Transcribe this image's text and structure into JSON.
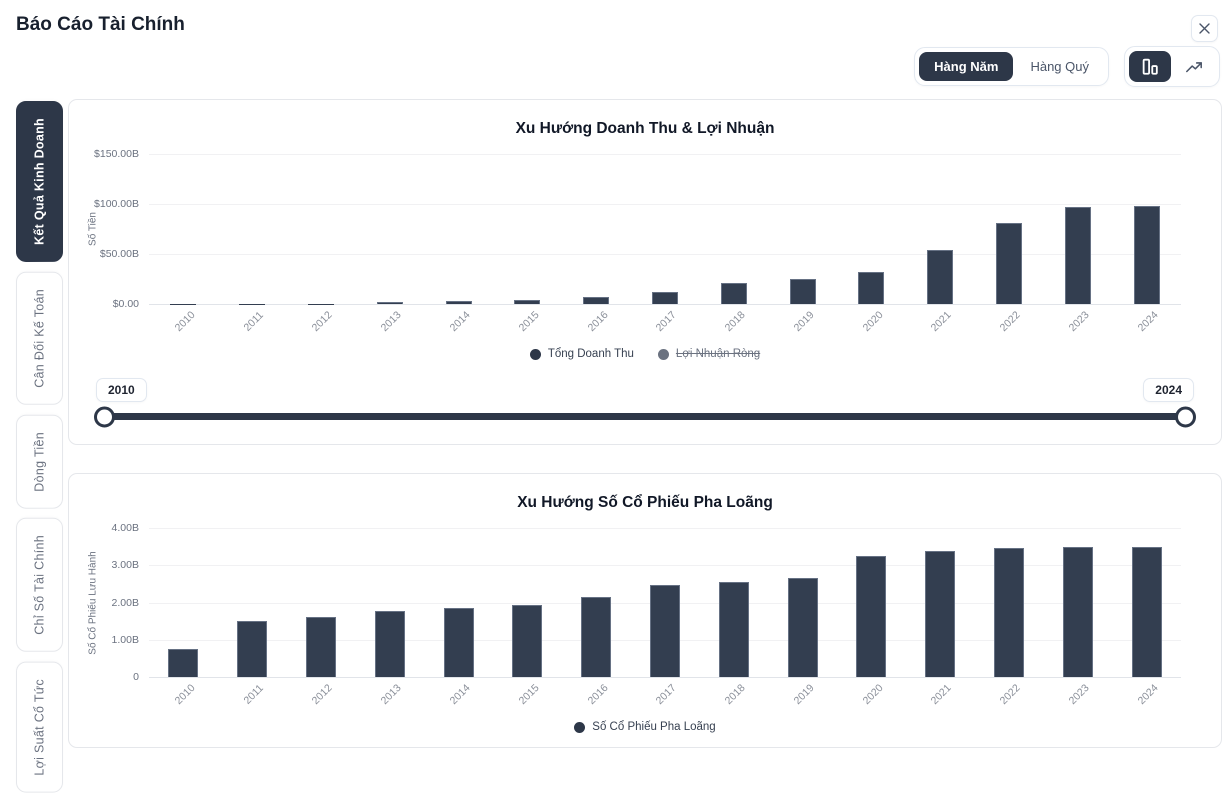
{
  "header": {
    "title": "Báo Cáo Tài Chính",
    "close_label": "×"
  },
  "controls": {
    "period_options": [
      {
        "id": "hang-nam",
        "label": "Hàng Năm",
        "active": true
      },
      {
        "id": "hang-quy",
        "label": "Hàng Quý",
        "active": false
      }
    ],
    "view_options": [
      {
        "id": "bar-view",
        "icon": "bar-chart-icon",
        "active": true
      },
      {
        "id": "line-view",
        "icon": "trend-line-icon",
        "active": false
      }
    ]
  },
  "sidebar": {
    "tabs": [
      {
        "id": "ket-qua-kinh-doanh",
        "label": "Kết Quả Kinh Doanh",
        "active": true
      },
      {
        "id": "can-doi-ke-toan",
        "label": "Cân Đối Kế Toán",
        "active": false
      },
      {
        "id": "dong-tien",
        "label": "Dòng Tiền",
        "active": false
      },
      {
        "id": "chi-so-tai-chinh",
        "label": "Chỉ Số Tài Chính",
        "active": false
      },
      {
        "id": "loi-suat-co-tuc",
        "label": "Lợi Suất Cổ Tức",
        "active": false
      }
    ]
  },
  "range_slider": {
    "min_label": "2010",
    "max_label": "2024"
  },
  "colors": {
    "accent": "#2d3748",
    "bar": "#333e50",
    "muted": "#6b7280",
    "grid": "#f1f1f3"
  },
  "chart_data": [
    {
      "type": "bar",
      "title": "Xu Hướng Doanh Thu & Lợi Nhuận",
      "ylabel": "Số Tiền",
      "xlabel": "",
      "categories": [
        "2010",
        "2011",
        "2012",
        "2013",
        "2014",
        "2015",
        "2016",
        "2017",
        "2018",
        "2019",
        "2020",
        "2021",
        "2022",
        "2023",
        "2024"
      ],
      "ylim": [
        0,
        150
      ],
      "yticks": [
        {
          "value": 0,
          "label": "$0.00"
        },
        {
          "value": 50,
          "label": "$50.00B"
        },
        {
          "value": 100,
          "label": "$100.00B"
        },
        {
          "value": 150,
          "label": "$150.00B"
        }
      ],
      "grid": true,
      "legend_position": "bottom",
      "series": [
        {
          "name": "Tổng Doanh Thu",
          "visible": true,
          "values": [
            0.12,
            0.2,
            0.41,
            2.01,
            3.2,
            4.05,
            7.0,
            11.76,
            21.46,
            24.58,
            31.54,
            53.82,
            81.46,
            96.77,
            97.69
          ]
        },
        {
          "name": "Lợi Nhuận Ròng",
          "visible": false,
          "values": null
        }
      ]
    },
    {
      "type": "bar",
      "title": "Xu Hướng Số Cổ Phiếu Pha Loãng",
      "ylabel": "Số Cổ Phiếu Lưu Hành",
      "xlabel": "",
      "categories": [
        "2010",
        "2011",
        "2012",
        "2013",
        "2014",
        "2015",
        "2016",
        "2017",
        "2018",
        "2019",
        "2020",
        "2021",
        "2022",
        "2023",
        "2024"
      ],
      "ylim": [
        0,
        4
      ],
      "yticks": [
        {
          "value": 0,
          "label": "0"
        },
        {
          "value": 1,
          "label": "1.00B"
        },
        {
          "value": 2,
          "label": "2.00B"
        },
        {
          "value": 3,
          "label": "3.00B"
        },
        {
          "value": 4,
          "label": "4.00B"
        }
      ],
      "grid": true,
      "legend_position": "bottom",
      "series": [
        {
          "name": "Số Cổ Phiếu Pha Loãng",
          "visible": true,
          "values": [
            0.75,
            1.51,
            1.6,
            1.78,
            1.86,
            1.92,
            2.16,
            2.47,
            2.56,
            2.65,
            3.25,
            3.39,
            3.47,
            3.49,
            3.5
          ]
        }
      ]
    }
  ]
}
